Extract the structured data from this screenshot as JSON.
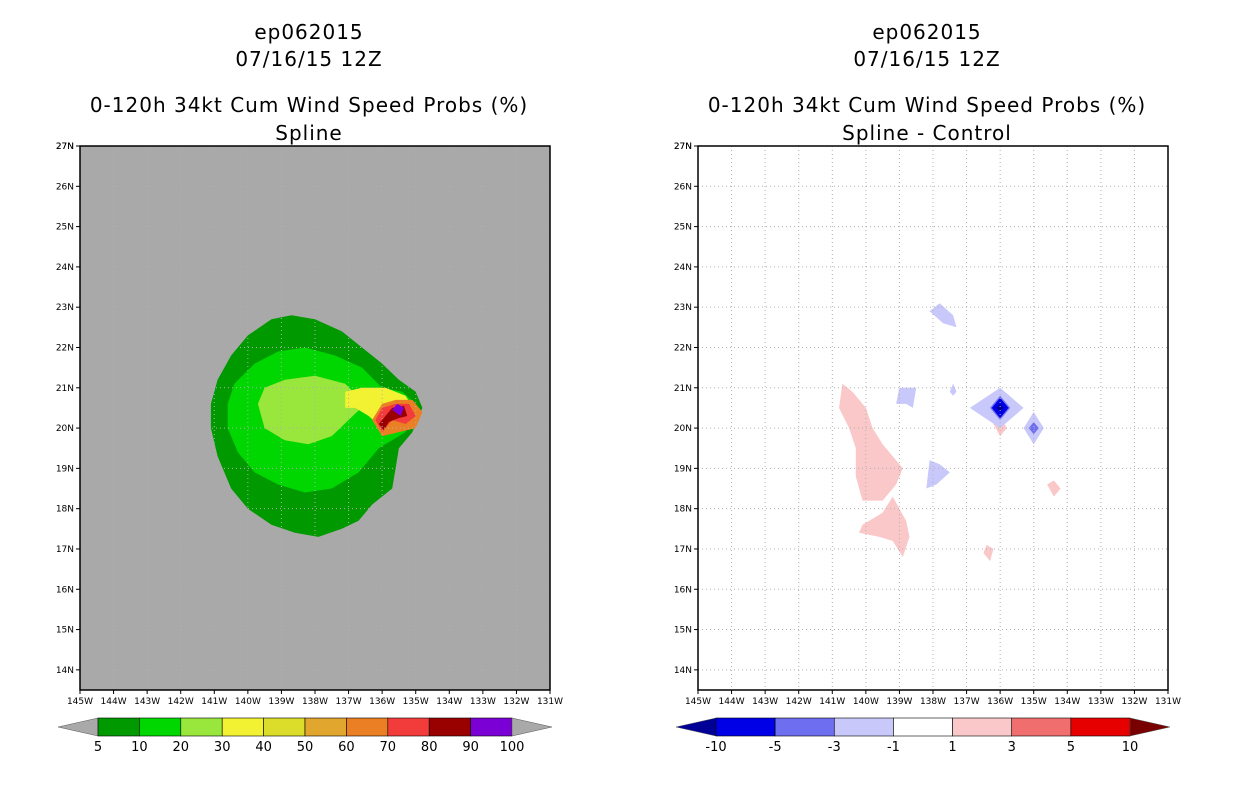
{
  "chart_data": [
    {
      "type": "contour-map",
      "case_id": "ep062015",
      "datetime": "07/16/15 12Z",
      "title": "0-120h 34kt Cum Wind Speed Probs (%)",
      "subtitle": "Spline",
      "background_color": "#a9a9a9",
      "x_ticks": [
        "145W",
        "144W",
        "143W",
        "142W",
        "141W",
        "140W",
        "139W",
        "138W",
        "137W",
        "136W",
        "135W",
        "134W",
        "133W",
        "132W",
        "131W"
      ],
      "y_ticks": [
        "14N",
        "15N",
        "16N",
        "17N",
        "18N",
        "19N",
        "20N",
        "21N",
        "22N",
        "23N",
        "24N",
        "25N",
        "26N",
        "27N"
      ],
      "lon_range": [
        -145,
        -131
      ],
      "lat_range": [
        13.5,
        27
      ],
      "colorbar": {
        "labels": [
          "5",
          "10",
          "20",
          "30",
          "40",
          "50",
          "60",
          "70",
          "80",
          "90",
          "100"
        ],
        "colors": [
          "#009900",
          "#00d600",
          "#99e63c",
          "#f2f232",
          "#dcdc2a",
          "#e1a62e",
          "#eb7f23",
          "#f23c3c",
          "#990000",
          "#7b00d6"
        ],
        "under_color": "#a9a9a9",
        "over_color": "#a9a9a9"
      },
      "contours": [
        {
          "level": 5,
          "color": "#009900",
          "polygon": [
            [
              -141.1,
              20.6
            ],
            [
              -140.9,
              21.2
            ],
            [
              -140.5,
              21.8
            ],
            [
              -140.0,
              22.3
            ],
            [
              -139.3,
              22.7
            ],
            [
              -138.7,
              22.8
            ],
            [
              -138.0,
              22.7
            ],
            [
              -137.2,
              22.4
            ],
            [
              -136.6,
              22.0
            ],
            [
              -136.0,
              21.6
            ],
            [
              -135.5,
              21.2
            ],
            [
              -135.0,
              20.9
            ],
            [
              -134.8,
              20.5
            ],
            [
              -135.1,
              19.9
            ],
            [
              -135.5,
              19.5
            ],
            [
              -135.6,
              19.0
            ],
            [
              -135.7,
              18.5
            ],
            [
              -136.3,
              18.1
            ],
            [
              -136.7,
              17.7
            ],
            [
              -137.2,
              17.5
            ],
            [
              -137.9,
              17.3
            ],
            [
              -138.6,
              17.4
            ],
            [
              -139.3,
              17.6
            ],
            [
              -140.0,
              18.0
            ],
            [
              -140.5,
              18.5
            ],
            [
              -140.9,
              19.3
            ],
            [
              -141.1,
              20.0
            ]
          ]
        },
        {
          "level": 10,
          "color": "#00d600",
          "polygon": [
            [
              -140.6,
              20.6
            ],
            [
              -140.4,
              21.1
            ],
            [
              -139.8,
              21.6
            ],
            [
              -139.1,
              21.9
            ],
            [
              -138.3,
              22.0
            ],
            [
              -137.4,
              21.8
            ],
            [
              -136.6,
              21.5
            ],
            [
              -136.0,
              21.0
            ],
            [
              -135.4,
              20.9
            ],
            [
              -135.0,
              20.6
            ],
            [
              -135.3,
              19.9
            ],
            [
              -136.1,
              19.5
            ],
            [
              -136.7,
              18.9
            ],
            [
              -137.5,
              18.5
            ],
            [
              -138.3,
              18.4
            ],
            [
              -139.1,
              18.6
            ],
            [
              -139.8,
              18.9
            ],
            [
              -140.3,
              19.4
            ],
            [
              -140.6,
              20.0
            ]
          ]
        },
        {
          "level": 20,
          "color": "#99e63c",
          "polygon": [
            [
              -139.7,
              20.6
            ],
            [
              -139.5,
              21.0
            ],
            [
              -138.9,
              21.2
            ],
            [
              -138.0,
              21.3
            ],
            [
              -137.1,
              21.1
            ],
            [
              -136.5,
              20.6
            ],
            [
              -137.0,
              20.2
            ],
            [
              -137.5,
              19.8
            ],
            [
              -138.2,
              19.6
            ],
            [
              -138.9,
              19.7
            ],
            [
              -139.5,
              20.0
            ]
          ]
        },
        {
          "level": 30,
          "color": "#f2f232",
          "polygon": [
            [
              -137.1,
              20.9
            ],
            [
              -137.1,
              20.5
            ],
            [
              -136.8,
              20.5
            ],
            [
              -136.4,
              20.3
            ],
            [
              -136.0,
              20.0
            ],
            [
              -135.6,
              20.1
            ],
            [
              -135.2,
              20.0
            ],
            [
              -135.0,
              20.4
            ],
            [
              -135.3,
              20.8
            ],
            [
              -135.9,
              21.0
            ],
            [
              -136.6,
              21.0
            ]
          ]
        },
        {
          "level": 60,
          "color": "#eb7f23",
          "polygon": [
            [
              -136.3,
              20.2
            ],
            [
              -136.0,
              19.8
            ],
            [
              -135.5,
              19.9
            ],
            [
              -135.0,
              20.0
            ],
            [
              -134.8,
              20.4
            ],
            [
              -135.1,
              20.7
            ],
            [
              -135.6,
              20.7
            ],
            [
              -136.0,
              20.6
            ]
          ]
        },
        {
          "level": 70,
          "color": "#f23c3c",
          "polygon": [
            [
              -136.2,
              20.2
            ],
            [
              -136.0,
              19.9
            ],
            [
              -135.7,
              20.2
            ],
            [
              -135.3,
              20.1
            ],
            [
              -135.0,
              20.3
            ],
            [
              -135.2,
              20.6
            ],
            [
              -135.6,
              20.6
            ],
            [
              -136.0,
              20.5
            ]
          ]
        },
        {
          "level": 80,
          "color": "#990000",
          "polygon": [
            [
              -136.1,
              20.1
            ],
            [
              -135.95,
              19.95
            ],
            [
              -135.8,
              20.15
            ],
            [
              -135.5,
              20.25
            ],
            [
              -135.25,
              20.3
            ],
            [
              -135.35,
              20.55
            ],
            [
              -135.7,
              20.5
            ]
          ]
        },
        {
          "level": 90,
          "color": "#7b00d6",
          "polygon": [
            [
              -135.7,
              20.45
            ],
            [
              -135.45,
              20.3
            ],
            [
              -135.35,
              20.5
            ],
            [
              -135.55,
              20.6
            ]
          ]
        }
      ]
    },
    {
      "type": "contour-map",
      "case_id": "ep062015",
      "datetime": "07/16/15 12Z",
      "title": "0-120h 34kt Cum Wind Speed Probs (%)",
      "subtitle": "Spline - Control",
      "background_color": "#ffffff",
      "x_ticks": [
        "145W",
        "144W",
        "143W",
        "142W",
        "141W",
        "140W",
        "139W",
        "138W",
        "137W",
        "136W",
        "135W",
        "134W",
        "133W",
        "132W",
        "131W"
      ],
      "y_ticks": [
        "14N",
        "15N",
        "16N",
        "17N",
        "18N",
        "19N",
        "20N",
        "21N",
        "22N",
        "23N",
        "24N",
        "25N",
        "26N",
        "27N"
      ],
      "lon_range": [
        -145,
        -131
      ],
      "lat_range": [
        13.5,
        27
      ],
      "colorbar": {
        "labels": [
          "-10",
          "-5",
          "-3",
          "-1",
          "1",
          "3",
          "5",
          "10"
        ],
        "colors": [
          "#0000e6",
          "#6e6ef0",
          "#c8c8fa",
          "#ffffff",
          "#fac8c8",
          "#f06e6e",
          "#e60000"
        ],
        "under_color": "#000096",
        "over_color": "#780000"
      },
      "contours": [
        {
          "level": 1,
          "color": "#fac8c8",
          "polygon": [
            [
              -140.8,
              20.5
            ],
            [
              -140.7,
              21.1
            ],
            [
              -140.4,
              20.9
            ],
            [
              -140.0,
              20.5
            ],
            [
              -139.8,
              20.0
            ],
            [
              -139.5,
              19.6
            ],
            [
              -139.2,
              19.3
            ],
            [
              -138.9,
              19.0
            ],
            [
              -139.1,
              18.6
            ],
            [
              -139.5,
              18.2
            ],
            [
              -140.1,
              18.2
            ],
            [
              -140.3,
              18.8
            ],
            [
              -140.3,
              19.5
            ],
            [
              -140.5,
              20.0
            ]
          ]
        },
        {
          "level": 1,
          "color": "#fac8c8",
          "polygon": [
            [
              -140.1,
              17.6
            ],
            [
              -139.5,
              17.9
            ],
            [
              -139.2,
              18.3
            ],
            [
              -138.8,
              17.7
            ],
            [
              -138.7,
              17.3
            ],
            [
              -138.9,
              16.8
            ],
            [
              -139.2,
              17.2
            ],
            [
              -139.6,
              17.3
            ],
            [
              -140.2,
              17.4
            ]
          ]
        },
        {
          "level": 1,
          "color": "#fac8c8",
          "polygon": [
            [
              -136.2,
              20.1
            ],
            [
              -136.0,
              19.8
            ],
            [
              -135.8,
              20.0
            ],
            [
              -136.0,
              20.3
            ]
          ]
        },
        {
          "level": 1,
          "color": "#fac8c8",
          "polygon": [
            [
              -134.6,
              18.6
            ],
            [
              -134.4,
              18.3
            ],
            [
              -134.2,
              18.5
            ],
            [
              -134.4,
              18.7
            ]
          ]
        },
        {
          "level": 1,
          "color": "#fac8c8",
          "polygon": [
            [
              -136.5,
              16.9
            ],
            [
              -136.3,
              16.7
            ],
            [
              -136.2,
              17.0
            ],
            [
              -136.4,
              17.1
            ]
          ]
        },
        {
          "level": -1,
          "color": "#c8c8fa",
          "polygon": [
            [
              -138.1,
              22.9
            ],
            [
              -137.8,
              23.1
            ],
            [
              -137.4,
              22.8
            ],
            [
              -137.3,
              22.5
            ],
            [
              -137.7,
              22.6
            ]
          ]
        },
        {
          "level": -1,
          "color": "#c8c8fa",
          "polygon": [
            [
              -139.0,
              21.0
            ],
            [
              -138.5,
              21.0
            ],
            [
              -138.6,
              20.5
            ],
            [
              -138.8,
              20.6
            ],
            [
              -139.1,
              20.6
            ]
          ]
        },
        {
          "level": -1,
          "color": "#c8c8fa",
          "polygon": [
            [
              -138.1,
              19.2
            ],
            [
              -137.8,
              19.1
            ],
            [
              -137.5,
              18.9
            ],
            [
              -137.9,
              18.6
            ],
            [
              -138.2,
              18.5
            ]
          ]
        },
        {
          "level": -1,
          "color": "#c8c8fa",
          "polygon": [
            [
              -137.4,
              21.1
            ],
            [
              -137.3,
              20.9
            ],
            [
              -137.4,
              20.8
            ],
            [
              -137.5,
              20.9
            ]
          ]
        },
        {
          "level": -1,
          "color": "#c8c8fa",
          "polygon": [
            [
              -136.9,
              20.5
            ],
            [
              -136.0,
              21.0
            ],
            [
              -135.3,
              20.5
            ],
            [
              -136.0,
              20.0
            ]
          ]
        },
        {
          "level": -3,
          "color": "#6e6ef0",
          "polygon": [
            [
              -136.3,
              20.5
            ],
            [
              -136.0,
              20.8
            ],
            [
              -135.7,
              20.5
            ],
            [
              -136.0,
              20.2
            ]
          ]
        },
        {
          "level": -5,
          "color": "#0000e6",
          "polygon": [
            [
              -136.25,
              20.5
            ],
            [
              -136.0,
              20.75
            ],
            [
              -135.75,
              20.5
            ],
            [
              -136.0,
              20.25
            ]
          ]
        },
        {
          "level": -10,
          "color": "#000096",
          "polygon": [
            [
              -136.1,
              20.5
            ],
            [
              -136.0,
              20.6
            ],
            [
              -135.9,
              20.5
            ],
            [
              -136.0,
              20.4
            ]
          ]
        },
        {
          "level": -1,
          "color": "#c8c8fa",
          "polygon": [
            [
              -135.3,
              20.0
            ],
            [
              -135.0,
              20.4
            ],
            [
              -134.7,
              20.0
            ],
            [
              -135.0,
              19.6
            ]
          ]
        },
        {
          "level": -3,
          "color": "#6e6ef0",
          "polygon": [
            [
              -135.15,
              20.0
            ],
            [
              -135.0,
              20.15
            ],
            [
              -134.85,
              20.0
            ],
            [
              -135.0,
              19.85
            ]
          ]
        }
      ]
    }
  ]
}
